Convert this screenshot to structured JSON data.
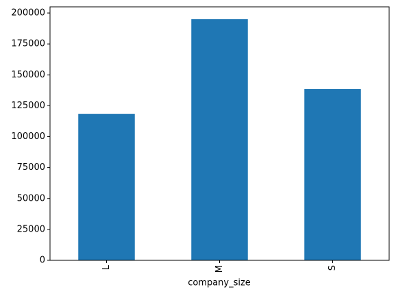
{
  "chart_data": {
    "type": "bar",
    "categories": [
      "L",
      "M",
      "S"
    ],
    "values": [
      118500,
      195000,
      138500
    ],
    "color": "#1f77b4",
    "xlabel": "company_size",
    "ylim": [
      0,
      205000
    ],
    "yticks": [
      0,
      25000,
      50000,
      75000,
      100000,
      125000,
      150000,
      175000,
      200000
    ]
  }
}
